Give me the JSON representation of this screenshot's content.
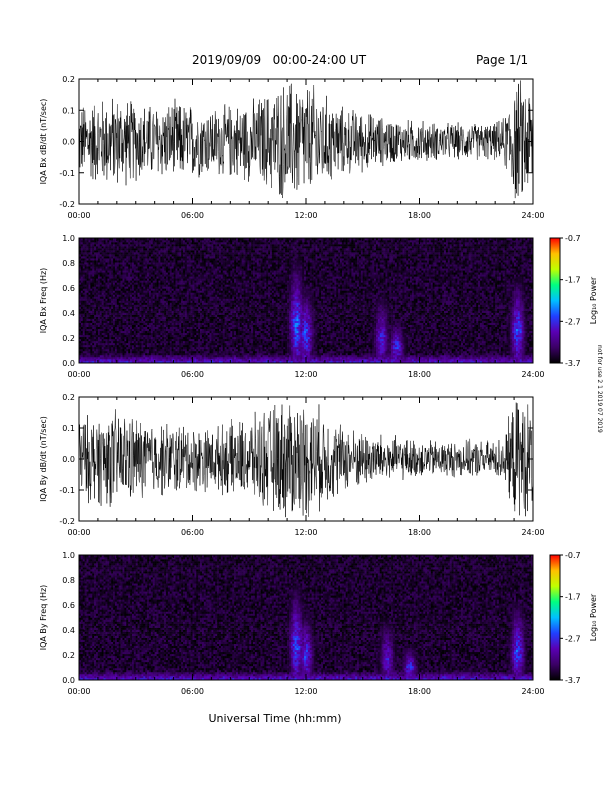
{
  "header": {
    "title": "2019/09/09   00:00-24:00 UT",
    "page": "Page 1/1"
  },
  "side_note": "not for use 2 1 2019 07 2019",
  "chart_data": [
    {
      "type": "line",
      "id": "bx_dbdt",
      "ylabel": "IQA Bx dB/dt (nT/sec)",
      "ylim": [
        -0.2,
        0.2
      ],
      "yticks": [
        "-0.2",
        "-0.1",
        "0.0",
        "0.1",
        "0.2"
      ],
      "xlim": [
        0,
        24
      ],
      "xticks": [
        "00:00",
        "06:00",
        "12:00",
        "18:00",
        "24:00"
      ],
      "envelope": {
        "x": [
          0,
          1,
          2,
          3,
          4,
          5,
          6,
          7,
          8,
          9,
          10,
          11,
          11.5,
          12,
          12.5,
          13,
          14,
          15,
          16,
          17,
          18,
          19,
          20,
          21,
          22,
          22.5,
          23,
          23.5,
          24
        ],
        "amp": [
          0.12,
          0.14,
          0.15,
          0.13,
          0.12,
          0.13,
          0.12,
          0.11,
          0.12,
          0.13,
          0.16,
          0.2,
          0.2,
          0.19,
          0.18,
          0.15,
          0.11,
          0.1,
          0.08,
          0.07,
          0.07,
          0.06,
          0.06,
          0.06,
          0.06,
          0.08,
          0.2,
          0.2,
          0.18
        ]
      }
    },
    {
      "type": "heatmap",
      "id": "bx_spec",
      "ylabel": "IQA Bx Freq (Hz)",
      "ylim": [
        0.0,
        1.0
      ],
      "yticks": [
        "0.0",
        "0.2",
        "0.4",
        "0.6",
        "0.8",
        "1.0"
      ],
      "xlim": [
        0,
        24
      ],
      "xticks": [
        "00:00",
        "06:00",
        "12:00",
        "18:00",
        "24:00"
      ],
      "colorbar": {
        "label": "Log₁₀ Power",
        "ticks": [
          "-0.7",
          "-1.7",
          "-2.7",
          "-3.7"
        ],
        "range": [
          -3.7,
          -0.7
        ]
      },
      "features": [
        {
          "x": 11.5,
          "f": 0.6,
          "level": -2.3
        },
        {
          "x": 12.0,
          "f": 0.45,
          "level": -2.4
        },
        {
          "x": 16.0,
          "f": 0.4,
          "level": -2.6
        },
        {
          "x": 16.8,
          "f": 0.25,
          "level": -2.5
        },
        {
          "x": 23.2,
          "f": 0.5,
          "level": -2.4
        }
      ]
    },
    {
      "type": "line",
      "id": "by_dbdt",
      "ylabel": "IQA By dB/dt (nT/sec)",
      "ylim": [
        -0.2,
        0.2
      ],
      "yticks": [
        "-0.2",
        "-0.1",
        "0.0",
        "0.1",
        "0.2"
      ],
      "xlim": [
        0,
        24
      ],
      "xticks": [
        "00:00",
        "06:00",
        "12:00",
        "18:00",
        "24:00"
      ],
      "envelope": {
        "x": [
          0,
          1,
          2,
          3,
          4,
          5,
          6,
          7,
          8,
          9,
          10,
          11,
          11.5,
          12,
          12.5,
          13,
          14,
          15,
          16,
          17,
          18,
          19,
          20,
          21,
          22,
          22.5,
          23,
          23.5,
          24
        ],
        "amp": [
          0.13,
          0.15,
          0.16,
          0.14,
          0.12,
          0.12,
          0.11,
          0.1,
          0.12,
          0.13,
          0.17,
          0.2,
          0.2,
          0.19,
          0.18,
          0.15,
          0.11,
          0.09,
          0.08,
          0.07,
          0.06,
          0.06,
          0.06,
          0.06,
          0.06,
          0.08,
          0.19,
          0.2,
          0.17
        ]
      }
    },
    {
      "type": "heatmap",
      "id": "by_spec",
      "ylabel": "IQA By Freq (Hz)",
      "ylim": [
        0.0,
        1.0
      ],
      "yticks": [
        "0.0",
        "0.2",
        "0.4",
        "0.6",
        "0.8",
        "1.0"
      ],
      "xlim": [
        0,
        24
      ],
      "xticks": [
        "00:00",
        "06:00",
        "12:00",
        "18:00",
        "24:00"
      ],
      "colorbar": {
        "label": "Log₁₀ Power",
        "ticks": [
          "-0.7",
          "-1.7",
          "-2.7",
          "-3.7"
        ],
        "range": [
          -3.7,
          -0.7
        ]
      },
      "features": [
        {
          "x": 11.5,
          "f": 0.55,
          "level": -2.4
        },
        {
          "x": 12.0,
          "f": 0.4,
          "level": -2.5
        },
        {
          "x": 16.3,
          "f": 0.35,
          "level": -2.7
        },
        {
          "x": 17.5,
          "f": 0.2,
          "level": -2.5
        },
        {
          "x": 23.2,
          "f": 0.45,
          "level": -2.4
        }
      ]
    }
  ],
  "xlabel": "Universal Time (hh:mm)",
  "colors": {
    "colormap": [
      "#000000",
      "#3b0066",
      "#5a00b4",
      "#2040ff",
      "#00c0ff",
      "#00ff80",
      "#c0ff00",
      "#ffc000",
      "#ff0000"
    ],
    "trace": "#000000"
  }
}
